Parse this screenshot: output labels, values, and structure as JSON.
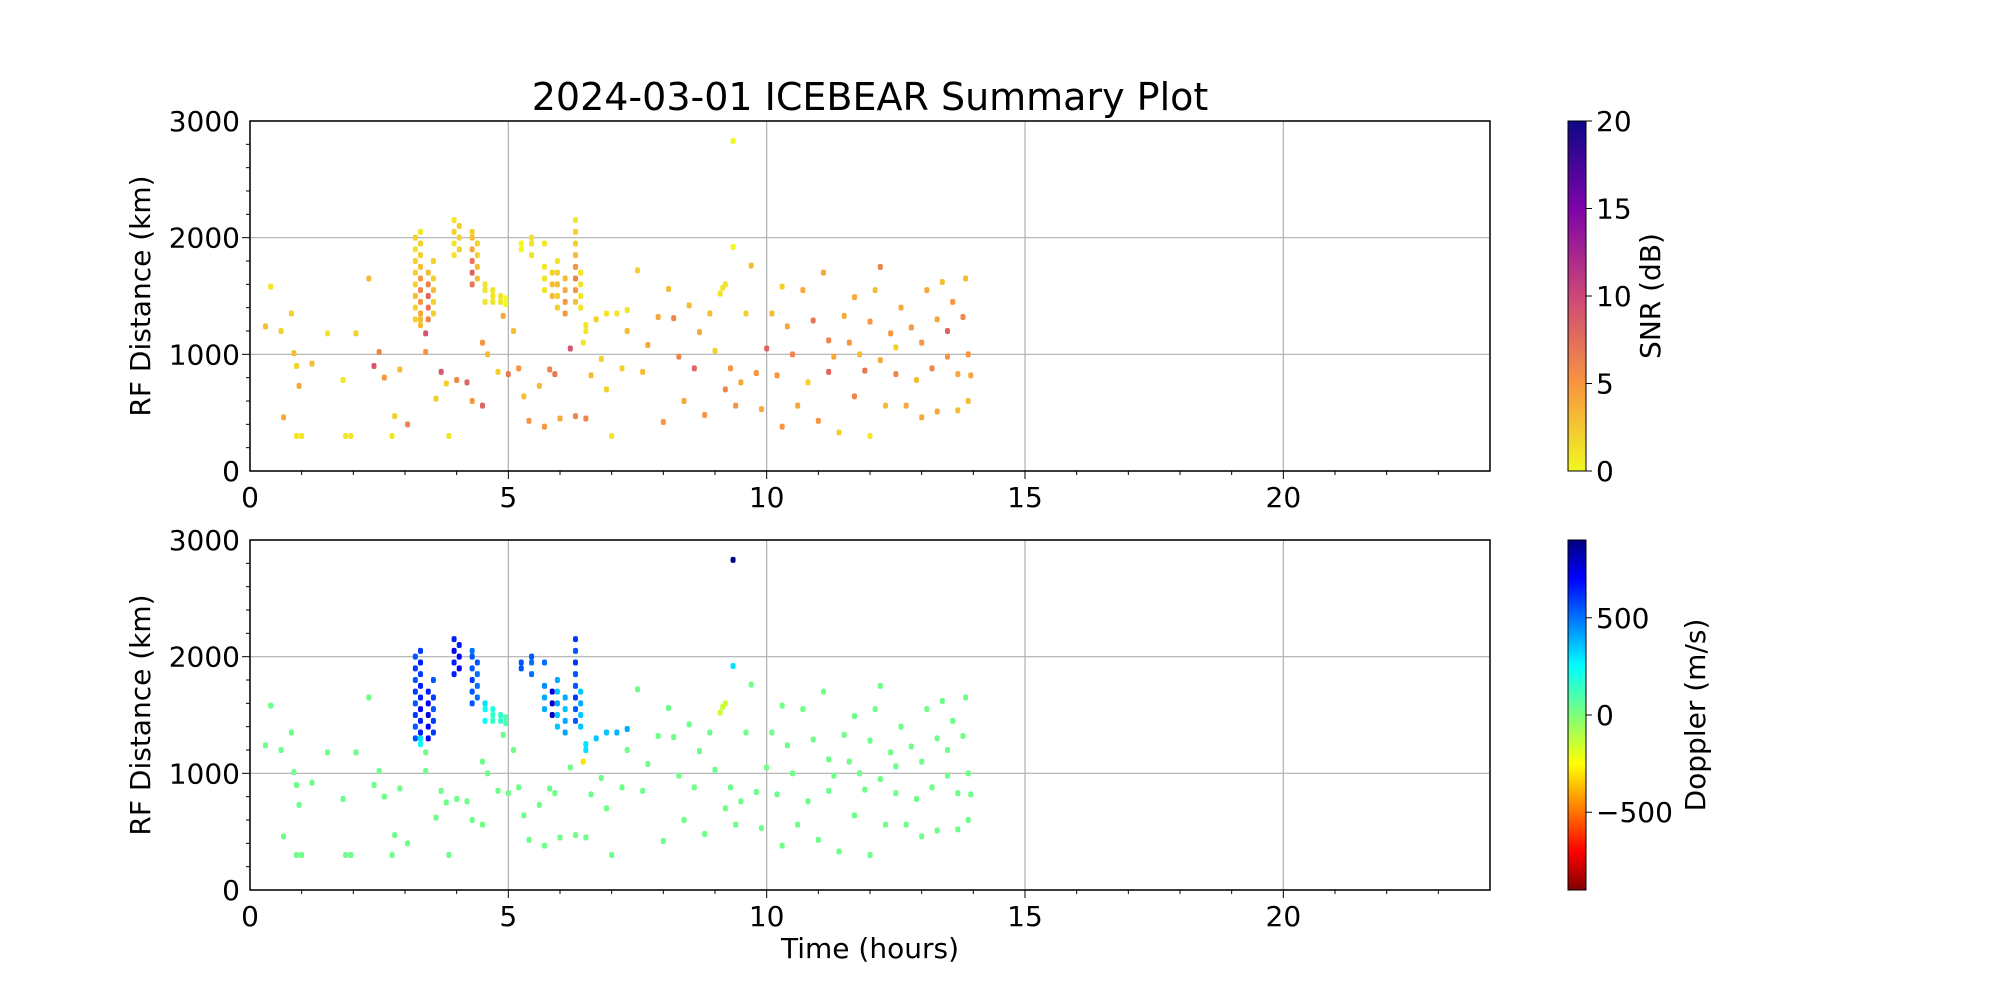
{
  "title": "2024-03-01 ICEBEAR Summary Plot",
  "chart_data": [
    {
      "type": "scatter",
      "panel": "top",
      "xlabel": "",
      "ylabel": "RF Distance (km)",
      "xlim": [
        0,
        24
      ],
      "ylim": [
        0,
        3000
      ],
      "xticks": [
        "0",
        "5",
        "10",
        "15",
        "20"
      ],
      "yticks": [
        "0",
        "1000",
        "2000",
        "3000"
      ],
      "grid": true,
      "color_by": "snr",
      "colorbar": {
        "label": "SNR (dB)",
        "colormap": "plasma_r",
        "range": [
          0,
          20
        ],
        "ticks": [
          "0",
          "5",
          "10",
          "15",
          "20"
        ]
      }
    },
    {
      "type": "scatter",
      "panel": "bottom",
      "xlabel": "Time (hours)",
      "ylabel": "RF Distance (km)",
      "xlim": [
        0,
        24
      ],
      "ylim": [
        0,
        3000
      ],
      "xticks": [
        "0",
        "5",
        "10",
        "15",
        "20"
      ],
      "yticks": [
        "0",
        "1000",
        "2000",
        "3000"
      ],
      "grid": true,
      "color_by": "doppler",
      "colorbar": {
        "label": "Doppler (m/s)",
        "colormap": "jet",
        "range": [
          -900,
          900
        ],
        "ticks": [
          "−500",
          "0",
          "500"
        ]
      }
    }
  ],
  "points_fields": [
    "time_hours",
    "rf_distance_km",
    "snr_db",
    "doppler_ms"
  ],
  "points": [
    [
      3.2,
      1300,
      2,
      550
    ],
    [
      3.2,
      1400,
      2,
      550
    ],
    [
      3.2,
      1500,
      3,
      600
    ],
    [
      3.2,
      1600,
      2,
      550
    ],
    [
      3.2,
      1700,
      2,
      600
    ],
    [
      3.2,
      1800,
      2,
      550
    ],
    [
      3.2,
      1900,
      1,
      600
    ],
    [
      3.2,
      2000,
      2,
      550
    ],
    [
      3.3,
      1250,
      3,
      250
    ],
    [
      3.3,
      1300,
      3,
      300
    ],
    [
      3.3,
      1350,
      4,
      650
    ],
    [
      3.3,
      1450,
      5,
      650
    ],
    [
      3.3,
      1550,
      6,
      700
    ],
    [
      3.3,
      1650,
      5,
      650
    ],
    [
      3.3,
      1750,
      3,
      650
    ],
    [
      3.3,
      1850,
      2,
      600
    ],
    [
      3.3,
      1950,
      2,
      650
    ],
    [
      3.3,
      2050,
      1,
      600
    ],
    [
      3.45,
      1300,
      6,
      700
    ],
    [
      3.45,
      1400,
      7,
      700
    ],
    [
      3.45,
      1500,
      8,
      750
    ],
    [
      3.45,
      1600,
      6,
      700
    ],
    [
      3.45,
      1700,
      3,
      650
    ],
    [
      3.55,
      1350,
      2,
      600
    ],
    [
      3.55,
      1450,
      2,
      600
    ],
    [
      3.55,
      1550,
      3,
      550
    ],
    [
      3.55,
      1650,
      2,
      600
    ],
    [
      3.55,
      1800,
      2,
      550
    ],
    [
      3.95,
      1850,
      1,
      650
    ],
    [
      3.95,
      1950,
      1,
      650
    ],
    [
      3.95,
      2050,
      2,
      700
    ],
    [
      3.95,
      2150,
      1,
      650
    ],
    [
      4.05,
      1900,
      2,
      700
    ],
    [
      4.05,
      2000,
      2,
      700
    ],
    [
      4.05,
      2100,
      2,
      650
    ],
    [
      4.3,
      1600,
      7,
      550
    ],
    [
      4.3,
      1700,
      8,
      550
    ],
    [
      4.3,
      1800,
      7,
      600
    ],
    [
      4.3,
      1900,
      4,
      550
    ],
    [
      4.3,
      2000,
      3,
      550
    ],
    [
      4.3,
      2050,
      2,
      500
    ],
    [
      4.4,
      1650,
      3,
      500
    ],
    [
      4.4,
      1750,
      3,
      500
    ],
    [
      4.4,
      1850,
      2,
      500
    ],
    [
      4.4,
      1950,
      2,
      550
    ],
    [
      4.55,
      1450,
      1,
      250
    ],
    [
      4.55,
      1550,
      1,
      250
    ],
    [
      4.55,
      1600,
      1,
      300
    ],
    [
      4.7,
      1450,
      1,
      150
    ],
    [
      4.7,
      1500,
      1,
      150
    ],
    [
      4.7,
      1550,
      1,
      180
    ],
    [
      4.85,
      1450,
      1,
      150
    ],
    [
      4.85,
      1500,
      1,
      150
    ],
    [
      4.95,
      1430,
      0,
      100
    ],
    [
      4.95,
      1480,
      0,
      100
    ],
    [
      5.25,
      1900,
      0,
      550
    ],
    [
      5.25,
      1950,
      0,
      550
    ],
    [
      5.45,
      1850,
      1,
      500
    ],
    [
      5.45,
      1950,
      1,
      500
    ],
    [
      5.45,
      2000,
      1,
      550
    ],
    [
      5.7,
      1550,
      1,
      400
    ],
    [
      5.7,
      1650,
      1,
      400
    ],
    [
      5.7,
      1750,
      1,
      450
    ],
    [
      5.7,
      1950,
      1,
      500
    ],
    [
      5.85,
      1500,
      3,
      800
    ],
    [
      5.85,
      1600,
      3,
      800
    ],
    [
      5.85,
      1700,
      2,
      750
    ],
    [
      5.95,
      1400,
      2,
      350
    ],
    [
      5.95,
      1500,
      2,
      350
    ],
    [
      5.95,
      1600,
      3,
      400
    ],
    [
      5.95,
      1700,
      2,
      350
    ],
    [
      5.95,
      1800,
      1,
      400
    ],
    [
      6.1,
      1350,
      5,
      400
    ],
    [
      6.1,
      1450,
      5,
      400
    ],
    [
      6.1,
      1550,
      4,
      350
    ],
    [
      6.1,
      1650,
      3,
      400
    ],
    [
      6.3,
      1450,
      3,
      550
    ],
    [
      6.3,
      1550,
      5,
      550
    ],
    [
      6.3,
      1650,
      6,
      600
    ],
    [
      6.3,
      1750,
      5,
      550
    ],
    [
      6.3,
      1850,
      3,
      550
    ],
    [
      6.3,
      1950,
      2,
      600
    ],
    [
      6.3,
      2050,
      2,
      550
    ],
    [
      6.3,
      2150,
      1,
      600
    ],
    [
      6.4,
      1400,
      1,
      350
    ],
    [
      6.4,
      1500,
      1,
      350
    ],
    [
      6.4,
      1600,
      1,
      400
    ],
    [
      6.4,
      1700,
      1,
      350
    ],
    [
      6.5,
      1250,
      1,
      300
    ],
    [
      6.5,
      1200,
      1,
      300
    ],
    [
      6.45,
      1100,
      1,
      -300
    ],
    [
      6.7,
      1300,
      2,
      350
    ],
    [
      6.9,
      1350,
      1,
      350
    ],
    [
      7.1,
      1350,
      1,
      380
    ],
    [
      7.3,
      1380,
      1,
      400
    ],
    [
      9.1,
      1520,
      1,
      -150
    ],
    [
      9.15,
      1570,
      1,
      -150
    ],
    [
      9.2,
      1600,
      1,
      -150
    ],
    [
      9.35,
      2830,
      0,
      900
    ],
    [
      9.35,
      1920,
      0,
      300
    ],
    [
      0.3,
      1240,
      3,
      30
    ],
    [
      0.4,
      1580,
      1,
      30
    ],
    [
      0.6,
      1200,
      2,
      30
    ],
    [
      0.65,
      460,
      4,
      30
    ],
    [
      0.8,
      1350,
      2,
      30
    ],
    [
      0.85,
      1010,
      3,
      30
    ],
    [
      0.9,
      900,
      2,
      30
    ],
    [
      0.9,
      300,
      1,
      30
    ],
    [
      1.0,
      300,
      1,
      30
    ],
    [
      0.95,
      730,
      4,
      30
    ],
    [
      1.2,
      920,
      3,
      30
    ],
    [
      1.5,
      1180,
      1,
      30
    ],
    [
      1.8,
      780,
      1,
      30
    ],
    [
      1.85,
      300,
      1,
      30
    ],
    [
      1.95,
      300,
      1,
      30
    ],
    [
      2.05,
      1180,
      2,
      30
    ],
    [
      2.3,
      1650,
      3,
      30
    ],
    [
      2.4,
      900,
      9,
      30
    ],
    [
      2.5,
      1020,
      6,
      30
    ],
    [
      2.6,
      800,
      5,
      30
    ],
    [
      2.75,
      300,
      1,
      30
    ],
    [
      2.8,
      470,
      2,
      30
    ],
    [
      2.9,
      870,
      3,
      30
    ],
    [
      3.05,
      400,
      6,
      30
    ],
    [
      3.4,
      1180,
      9,
      30
    ],
    [
      3.4,
      1020,
      5,
      30
    ],
    [
      3.6,
      620,
      2,
      30
    ],
    [
      3.7,
      850,
      9,
      30
    ],
    [
      3.8,
      750,
      2,
      30
    ],
    [
      3.85,
      300,
      1,
      30
    ],
    [
      4.0,
      780,
      6,
      30
    ],
    [
      4.2,
      760,
      8,
      30
    ],
    [
      4.3,
      600,
      5,
      30
    ],
    [
      4.5,
      560,
      8,
      30
    ],
    [
      4.5,
      1100,
      5,
      30
    ],
    [
      4.6,
      1000,
      3,
      30
    ],
    [
      4.8,
      850,
      2,
      30
    ],
    [
      4.9,
      1330,
      4,
      30
    ],
    [
      5.0,
      830,
      7,
      30
    ],
    [
      5.1,
      1200,
      3,
      30
    ],
    [
      5.2,
      880,
      5,
      30
    ],
    [
      5.3,
      640,
      3,
      30
    ],
    [
      5.4,
      430,
      5,
      30
    ],
    [
      5.6,
      730,
      3,
      30
    ],
    [
      5.7,
      380,
      5,
      30
    ],
    [
      5.8,
      870,
      6,
      30
    ],
    [
      5.9,
      830,
      7,
      30
    ],
    [
      6.0,
      450,
      4,
      30
    ],
    [
      6.2,
      1050,
      9,
      30
    ],
    [
      6.3,
      470,
      6,
      30
    ],
    [
      6.5,
      450,
      6,
      30
    ],
    [
      6.6,
      820,
      3,
      30
    ],
    [
      6.8,
      960,
      2,
      30
    ],
    [
      6.9,
      700,
      2,
      30
    ],
    [
      7.0,
      300,
      1,
      30
    ],
    [
      7.2,
      880,
      2,
      30
    ],
    [
      7.3,
      1200,
      3,
      30
    ],
    [
      7.5,
      1720,
      2,
      30
    ],
    [
      7.6,
      850,
      3,
      30
    ],
    [
      7.7,
      1080,
      4,
      30
    ],
    [
      7.9,
      1320,
      4,
      30
    ],
    [
      8.0,
      420,
      5,
      30
    ],
    [
      8.1,
      1560,
      3,
      30
    ],
    [
      8.2,
      1310,
      6,
      30
    ],
    [
      8.3,
      980,
      6,
      30
    ],
    [
      8.4,
      600,
      4,
      30
    ],
    [
      8.5,
      1420,
      3,
      30
    ],
    [
      8.6,
      880,
      8,
      30
    ],
    [
      8.7,
      1190,
      4,
      30
    ],
    [
      8.8,
      480,
      5,
      30
    ],
    [
      8.9,
      1350,
      3,
      30
    ],
    [
      9.0,
      1030,
      2,
      30
    ],
    [
      9.2,
      700,
      6,
      30
    ],
    [
      9.3,
      880,
      5,
      30
    ],
    [
      9.4,
      560,
      5,
      30
    ],
    [
      9.5,
      760,
      4,
      30
    ],
    [
      9.6,
      1350,
      2,
      30
    ],
    [
      9.7,
      1760,
      3,
      30
    ],
    [
      9.8,
      840,
      5,
      30
    ],
    [
      9.9,
      530,
      4,
      30
    ],
    [
      10.0,
      1050,
      8,
      30
    ],
    [
      10.1,
      1350,
      3,
      30
    ],
    [
      10.2,
      820,
      5,
      30
    ],
    [
      10.3,
      1580,
      2,
      30
    ],
    [
      10.3,
      380,
      5,
      30
    ],
    [
      10.4,
      1240,
      4,
      30
    ],
    [
      10.5,
      1000,
      6,
      30
    ],
    [
      10.6,
      560,
      4,
      30
    ],
    [
      10.7,
      1550,
      4,
      30
    ],
    [
      10.8,
      760,
      2,
      30
    ],
    [
      10.9,
      1290,
      7,
      30
    ],
    [
      11.0,
      430,
      5,
      30
    ],
    [
      11.1,
      1700,
      4,
      30
    ],
    [
      11.2,
      1120,
      6,
      30
    ],
    [
      11.2,
      850,
      8,
      30
    ],
    [
      11.3,
      980,
      4,
      30
    ],
    [
      11.4,
      330,
      2,
      30
    ],
    [
      11.5,
      1330,
      4,
      30
    ],
    [
      11.6,
      1100,
      5,
      30
    ],
    [
      11.7,
      640,
      6,
      30
    ],
    [
      11.7,
      1490,
      4,
      30
    ],
    [
      11.8,
      1000,
      3,
      30
    ],
    [
      11.9,
      860,
      7,
      30
    ],
    [
      12.0,
      1280,
      5,
      30
    ],
    [
      12.0,
      300,
      1,
      30
    ],
    [
      12.1,
      1550,
      3,
      30
    ],
    [
      12.2,
      1750,
      6,
      30
    ],
    [
      12.2,
      950,
      4,
      30
    ],
    [
      12.3,
      560,
      3,
      30
    ],
    [
      12.4,
      1180,
      5,
      30
    ],
    [
      12.5,
      1060,
      2,
      30
    ],
    [
      12.5,
      830,
      6,
      30
    ],
    [
      12.6,
      1400,
      4,
      30
    ],
    [
      12.7,
      560,
      4,
      30
    ],
    [
      12.8,
      1230,
      5,
      30
    ],
    [
      12.9,
      780,
      3,
      30
    ],
    [
      13.0,
      1100,
      5,
      30
    ],
    [
      13.0,
      460,
      4,
      30
    ],
    [
      13.1,
      1550,
      4,
      30
    ],
    [
      13.2,
      880,
      6,
      30
    ],
    [
      13.3,
      1300,
      4,
      30
    ],
    [
      13.3,
      510,
      4,
      30
    ],
    [
      13.4,
      1620,
      3,
      30
    ],
    [
      13.5,
      980,
      5,
      30
    ],
    [
      13.5,
      1200,
      8,
      30
    ],
    [
      13.6,
      1450,
      5,
      30
    ],
    [
      13.7,
      830,
      4,
      30
    ],
    [
      13.7,
      520,
      3,
      30
    ],
    [
      13.8,
      1320,
      6,
      30
    ],
    [
      13.85,
      1650,
      3,
      30
    ],
    [
      13.9,
      1000,
      5,
      30
    ],
    [
      13.9,
      600,
      3,
      30
    ],
    [
      13.95,
      820,
      4,
      30
    ]
  ]
}
